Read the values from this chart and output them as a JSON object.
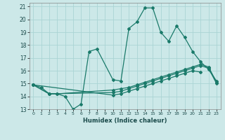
{
  "xlabel": "Humidex (Indice chaleur)",
  "xlim": [
    -0.5,
    23.5
  ],
  "ylim": [
    13,
    21.3
  ],
  "yticks": [
    13,
    14,
    15,
    16,
    17,
    18,
    19,
    20,
    21
  ],
  "xticks": [
    0,
    1,
    2,
    3,
    4,
    5,
    6,
    7,
    8,
    9,
    10,
    11,
    12,
    13,
    14,
    15,
    16,
    17,
    18,
    19,
    20,
    21,
    22,
    23
  ],
  "bg_color": "#cce8e8",
  "grid_color": "#aad4d4",
  "line_color": "#1a7a6a",
  "lines": [
    {
      "x": [
        0,
        1,
        2,
        3,
        4,
        5,
        6,
        7,
        8,
        10,
        11,
        12,
        13,
        14,
        15,
        16,
        17,
        18,
        19,
        20,
        21,
        22,
        23
      ],
      "y": [
        14.9,
        14.7,
        14.2,
        14.2,
        14.0,
        13.0,
        13.4,
        17.5,
        17.7,
        15.3,
        15.2,
        19.3,
        19.8,
        20.9,
        20.9,
        19.0,
        18.3,
        19.5,
        18.6,
        17.5,
        16.7,
        16.1,
        15.2
      ]
    },
    {
      "x": [
        0,
        2,
        3,
        10,
        11,
        12,
        13,
        14,
        15,
        16,
        17,
        18,
        19,
        20,
        21,
        22,
        23
      ],
      "y": [
        14.9,
        14.2,
        14.2,
        14.5,
        14.6,
        14.7,
        14.9,
        15.1,
        15.3,
        15.5,
        15.7,
        15.9,
        16.1,
        16.3,
        16.5,
        16.3,
        15.1
      ]
    },
    {
      "x": [
        0,
        2,
        10,
        11,
        12,
        13,
        14,
        15,
        16,
        17,
        18,
        19,
        20,
        21,
        22,
        23
      ],
      "y": [
        14.9,
        14.2,
        14.3,
        14.4,
        14.6,
        14.8,
        15.0,
        15.2,
        15.4,
        15.6,
        15.8,
        16.0,
        16.2,
        16.4,
        16.2,
        15.0
      ]
    },
    {
      "x": [
        0,
        10,
        11,
        12,
        13,
        14,
        15,
        16,
        17,
        18,
        19,
        20,
        21
      ],
      "y": [
        14.9,
        14.1,
        14.2,
        14.4,
        14.6,
        14.8,
        15.0,
        15.2,
        15.4,
        15.6,
        15.8,
        16.0,
        15.9
      ]
    }
  ]
}
